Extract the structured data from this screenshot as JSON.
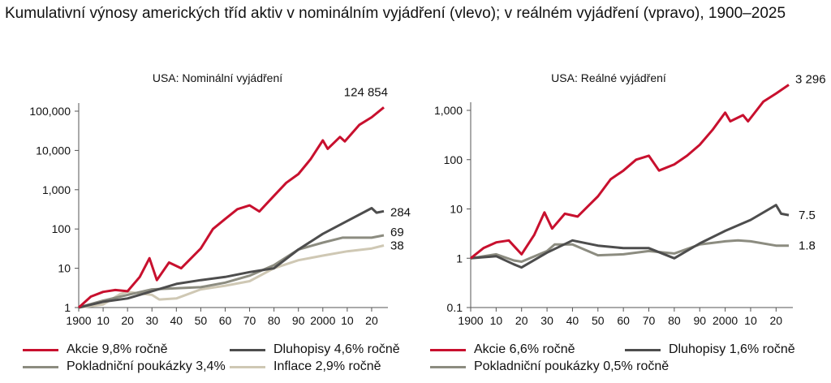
{
  "title": "Kumulativní výnosy amerických tříd aktiv v nominálním vyjádření (vlevo); v reálném vyjádření (vpravo), 1900–2025",
  "colors": {
    "equities": "#c8102e",
    "bonds": "#4d4d4d",
    "bills": "#8c8c80",
    "inflation": "#cfc8b4"
  },
  "chart_data": [
    {
      "type": "line",
      "title": "USA: Nominální vyjádření",
      "yscale": "log",
      "ylim": [
        1,
        200000
      ],
      "xlim": [
        1900,
        2025
      ],
      "yticks": [
        1,
        10,
        100,
        1000,
        10000,
        100000
      ],
      "ytick_labels": [
        "1",
        "10",
        "100",
        "1,000",
        "10,000",
        "100,000"
      ],
      "xticks": [
        1900,
        1910,
        1920,
        1930,
        1940,
        1950,
        1960,
        1970,
        1980,
        1990,
        2000,
        2010,
        2020
      ],
      "xtick_labels": [
        "1900",
        "10",
        "20",
        "30",
        "40",
        "50",
        "60",
        "70",
        "80",
        "90",
        "2000",
        "10",
        "20"
      ],
      "series": [
        {
          "name": "Akcie 9,8% ročně",
          "key": "equities",
          "end_label": "124 854",
          "x": [
            1900,
            1905,
            1910,
            1915,
            1920,
            1925,
            1929,
            1932,
            1937,
            1942,
            1950,
            1955,
            1960,
            1965,
            1970,
            1974,
            1980,
            1985,
            1990,
            1995,
            2000,
            2002,
            2007,
            2009,
            2015,
            2020,
            2025
          ],
          "values": [
            1,
            1.9,
            2.5,
            2.8,
            2.6,
            6,
            18,
            5,
            14,
            10,
            32,
            100,
            180,
            320,
            400,
            280,
            700,
            1500,
            2500,
            6000,
            18000,
            11000,
            22000,
            17000,
            45000,
            70000,
            124854
          ]
        },
        {
          "name": "Dluhopisy 4,6% ročně",
          "key": "bonds",
          "end_label": "284",
          "x": [
            1900,
            1910,
            1920,
            1930,
            1940,
            1950,
            1960,
            1970,
            1980,
            1990,
            2000,
            2010,
            2020,
            2022,
            2025
          ],
          "values": [
            1,
            1.4,
            1.7,
            2.6,
            4,
            5,
            6,
            8,
            10,
            30,
            75,
            160,
            340,
            260,
            284
          ]
        },
        {
          "name": "Pokladniční poukázky 3,4%",
          "key": "bills",
          "end_label": "69",
          "x": [
            1900,
            1910,
            1920,
            1930,
            1940,
            1950,
            1960,
            1970,
            1980,
            1990,
            2000,
            2008,
            2020,
            2025
          ],
          "values": [
            1,
            1.5,
            2.1,
            2.9,
            3.1,
            3.3,
            4.3,
            6.5,
            12,
            30,
            45,
            60,
            60,
            69
          ]
        },
        {
          "name": "Inflace 2,9% ročně",
          "key": "inflation",
          "end_label": "38",
          "x": [
            1900,
            1910,
            1917,
            1920,
            1930,
            1933,
            1940,
            1950,
            1960,
            1970,
            1980,
            1990,
            2000,
            2010,
            2020,
            2025
          ],
          "values": [
            1,
            1.2,
            2.2,
            2.5,
            2.1,
            1.6,
            1.7,
            2.9,
            3.6,
            4.7,
            10,
            16,
            21,
            27,
            32,
            38
          ]
        }
      ]
    },
    {
      "type": "line",
      "title": "USA: Reálné vyjádření",
      "yscale": "log",
      "ylim": [
        0.1,
        5000
      ],
      "xlim": [
        1900,
        2025
      ],
      "yticks": [
        0.1,
        1,
        10,
        100,
        1000
      ],
      "ytick_labels": [
        "0.1",
        "1",
        "10",
        "100",
        "1,000"
      ],
      "xticks": [
        1900,
        1910,
        1920,
        1930,
        1940,
        1950,
        1960,
        1970,
        1980,
        1990,
        2000,
        2010,
        2020
      ],
      "xtick_labels": [
        "1900",
        "10",
        "20",
        "30",
        "40",
        "50",
        "60",
        "70",
        "80",
        "90",
        "2000",
        "10",
        "20"
      ],
      "series": [
        {
          "name": "Akcie 6,6% ročně",
          "key": "equities",
          "end_label": "3 296",
          "x": [
            1900,
            1905,
            1910,
            1915,
            1920,
            1925,
            1929,
            1932,
            1937,
            1942,
            1950,
            1955,
            1960,
            1965,
            1970,
            1974,
            1980,
            1985,
            1990,
            1995,
            2000,
            2002,
            2007,
            2009,
            2015,
            2020,
            2025
          ],
          "values": [
            1,
            1.6,
            2.1,
            2.3,
            1.2,
            3,
            8.5,
            4,
            8,
            7,
            18,
            40,
            60,
            100,
            120,
            60,
            80,
            120,
            200,
            400,
            900,
            600,
            800,
            600,
            1500,
            2200,
            3296
          ]
        },
        {
          "name": "Dluhopisy 1,6% ročně",
          "key": "bonds",
          "end_label": "7.5",
          "x": [
            1900,
            1910,
            1917,
            1920,
            1930,
            1940,
            1950,
            1960,
            1970,
            1980,
            1990,
            2000,
            2010,
            2020,
            2022,
            2025
          ],
          "values": [
            1,
            1.1,
            0.75,
            0.65,
            1.3,
            2.3,
            1.8,
            1.6,
            1.6,
            1,
            2,
            3.6,
            6,
            12,
            8,
            7.5
          ]
        },
        {
          "name": "Pokladniční poukázky 0,5% ročně",
          "key": "bills",
          "end_label": "1.8",
          "x": [
            1900,
            1910,
            1917,
            1920,
            1930,
            1933,
            1940,
            1950,
            1960,
            1970,
            1980,
            1990,
            2000,
            2005,
            2010,
            2020,
            2025
          ],
          "values": [
            1,
            1.2,
            0.9,
            0.85,
            1.4,
            1.9,
            1.9,
            1.15,
            1.2,
            1.4,
            1.25,
            1.9,
            2.2,
            2.3,
            2.2,
            1.8,
            1.8
          ]
        }
      ]
    }
  ]
}
